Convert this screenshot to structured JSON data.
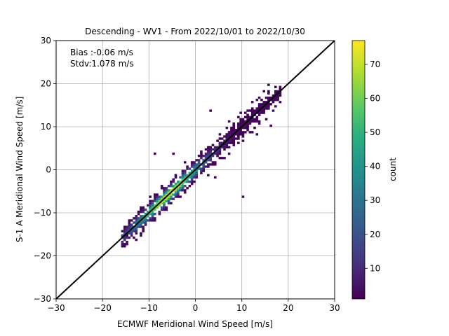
{
  "chart_data": {
    "type": "heatmap",
    "title": "Descending - WV1 - From 2022/10/01 to 2022/10/30",
    "xlabel": "ECMWF Meridional Wind Speed [m/s]",
    "ylabel": "S-1 A Meridional Wind Speed [m/s]",
    "xlim": [
      -30,
      30
    ],
    "ylim": [
      -30,
      30
    ],
    "xticks": [
      "−30",
      "−20",
      "−10",
      "0",
      "10",
      "20",
      "30"
    ],
    "yticks": [
      "−30",
      "−20",
      "−10",
      "0",
      "10",
      "20",
      "30"
    ],
    "grid": true,
    "annotations": [
      "Bias :-0.06 m/s",
      "Stdv:1.078 m/s"
    ],
    "reference_line": {
      "x": [
        -30,
        30
      ],
      "y": [
        -30,
        30
      ],
      "color": "#000000"
    },
    "colorbar": {
      "label": "count",
      "range": [
        1,
        77
      ],
      "ticks": [
        "10",
        "20",
        "30",
        "40",
        "50",
        "60",
        "70"
      ],
      "colormap": "viridis"
    },
    "density_model": {
      "x_range": [
        -16,
        18
      ],
      "spread": 1.078,
      "peak": 77,
      "peak_center": [
        -6,
        -6
      ]
    }
  }
}
